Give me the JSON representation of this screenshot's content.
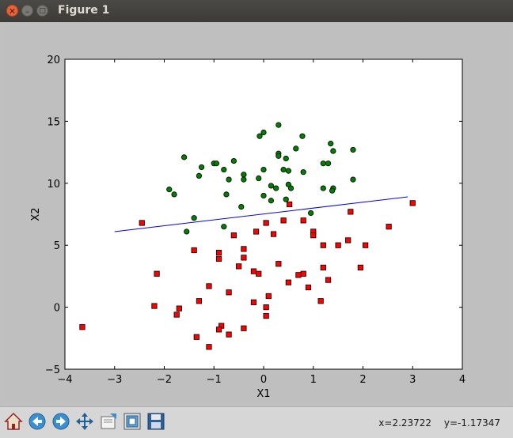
{
  "window": {
    "title": "Figure 1"
  },
  "titlebar": {
    "close_glyph": "✕",
    "min_glyph": "–",
    "max_glyph": "□"
  },
  "toolbar": {
    "items": [
      {
        "name": "home-icon"
      },
      {
        "name": "back-icon"
      },
      {
        "name": "forward-icon"
      },
      {
        "name": "pan-icon"
      },
      {
        "name": "zoom-rect-icon"
      },
      {
        "name": "configure-subplots-icon"
      },
      {
        "name": "save-icon"
      }
    ],
    "coord_x": "x=2.23722",
    "coord_y": "y=-1.17347"
  },
  "chart_data": {
    "type": "scatter",
    "xlabel": "X1",
    "ylabel": "X2",
    "xlim": [
      -4,
      4
    ],
    "ylim": [
      -5,
      20
    ],
    "xticks": [
      "−4",
      "−3",
      "−2",
      "−1",
      "0",
      "1",
      "2",
      "3",
      "4"
    ],
    "yticks": [
      "−5",
      "0",
      "5",
      "10",
      "15",
      "20"
    ],
    "grid": false,
    "colors": {
      "green": "#008000",
      "red": "#ff0000",
      "line": "#0000ff"
    },
    "series": [
      {
        "marker": "circle",
        "color": "green",
        "points": [
          [
            0.3,
            14.7
          ],
          [
            0.0,
            14.1
          ],
          [
            -0.08,
            13.8
          ],
          [
            0.78,
            13.8
          ],
          [
            1.35,
            13.2
          ],
          [
            0.65,
            12.8
          ],
          [
            1.8,
            12.7
          ],
          [
            1.4,
            12.6
          ],
          [
            0.3,
            12.4
          ],
          [
            0.3,
            12.2
          ],
          [
            -1.6,
            12.1
          ],
          [
            0.45,
            12.0
          ],
          [
            -0.6,
            11.8
          ],
          [
            -1.0,
            11.6
          ],
          [
            -0.95,
            11.6
          ],
          [
            1.2,
            11.6
          ],
          [
            1.3,
            11.6
          ],
          [
            -1.25,
            11.3
          ],
          [
            -0.8,
            11.1
          ],
          [
            0.4,
            11.1
          ],
          [
            0.5,
            11.0
          ],
          [
            0.0,
            11.1
          ],
          [
            0.8,
            10.9
          ],
          [
            -0.4,
            10.7
          ],
          [
            -1.3,
            10.6
          ],
          [
            -0.1,
            10.4
          ],
          [
            -0.7,
            10.3
          ],
          [
            -0.4,
            10.3
          ],
          [
            1.8,
            10.3
          ],
          [
            0.5,
            9.9
          ],
          [
            0.15,
            9.8
          ],
          [
            0.25,
            9.6
          ],
          [
            0.55,
            9.6
          ],
          [
            1.2,
            9.6
          ],
          [
            1.4,
            9.6
          ],
          [
            -1.9,
            9.5
          ],
          [
            1.38,
            9.4
          ],
          [
            -1.8,
            9.1
          ],
          [
            -0.75,
            9.1
          ],
          [
            0.0,
            9.0
          ],
          [
            0.45,
            8.7
          ],
          [
            0.15,
            8.6
          ],
          [
            -0.45,
            8.1
          ],
          [
            0.95,
            7.6
          ],
          [
            -1.4,
            7.2
          ],
          [
            -0.8,
            6.5
          ],
          [
            -1.55,
            6.1
          ]
        ]
      },
      {
        "marker": "square",
        "color": "red",
        "points": [
          [
            0.52,
            8.3
          ],
          [
            3.0,
            8.4
          ],
          [
            1.75,
            7.7
          ],
          [
            0.8,
            7.0
          ],
          [
            -2.45,
            6.8
          ],
          [
            0.05,
            6.8
          ],
          [
            0.4,
            7.0
          ],
          [
            2.52,
            6.5
          ],
          [
            -0.15,
            6.1
          ],
          [
            1.0,
            6.1
          ],
          [
            0.2,
            5.9
          ],
          [
            -0.6,
            5.8
          ],
          [
            1.0,
            5.8
          ],
          [
            1.7,
            5.4
          ],
          [
            1.2,
            5.0
          ],
          [
            1.5,
            5.0
          ],
          [
            2.05,
            5.0
          ],
          [
            -0.4,
            4.7
          ],
          [
            -1.4,
            4.6
          ],
          [
            -0.9,
            4.4
          ],
          [
            -0.9,
            3.9
          ],
          [
            -0.4,
            4.0
          ],
          [
            0.3,
            3.5
          ],
          [
            -0.5,
            3.3
          ],
          [
            1.2,
            3.2
          ],
          [
            1.95,
            3.2
          ],
          [
            -0.2,
            2.9
          ],
          [
            -0.1,
            2.7
          ],
          [
            -2.15,
            2.7
          ],
          [
            0.8,
            2.7
          ],
          [
            0.7,
            2.6
          ],
          [
            1.3,
            2.2
          ],
          [
            0.5,
            2.0
          ],
          [
            -1.1,
            1.7
          ],
          [
            0.9,
            1.6
          ],
          [
            -0.7,
            1.2
          ],
          [
            0.1,
            0.9
          ],
          [
            -1.3,
            0.5
          ],
          [
            1.15,
            0.5
          ],
          [
            -0.2,
            0.4
          ],
          [
            -2.2,
            0.1
          ],
          [
            0.05,
            0.0
          ],
          [
            -1.7,
            -0.1
          ],
          [
            -1.75,
            -0.6
          ],
          [
            0.05,
            -0.7
          ],
          [
            -3.65,
            -1.6
          ],
          [
            -0.85,
            -1.5
          ],
          [
            -0.9,
            -1.8
          ],
          [
            -0.4,
            -1.7
          ],
          [
            -0.7,
            -2.2
          ],
          [
            -1.35,
            -2.4
          ],
          [
            -1.1,
            -3.2
          ]
        ]
      }
    ],
    "line": {
      "color": "line",
      "x": [
        -3.0,
        2.9
      ],
      "y": [
        6.1,
        8.9
      ]
    }
  }
}
